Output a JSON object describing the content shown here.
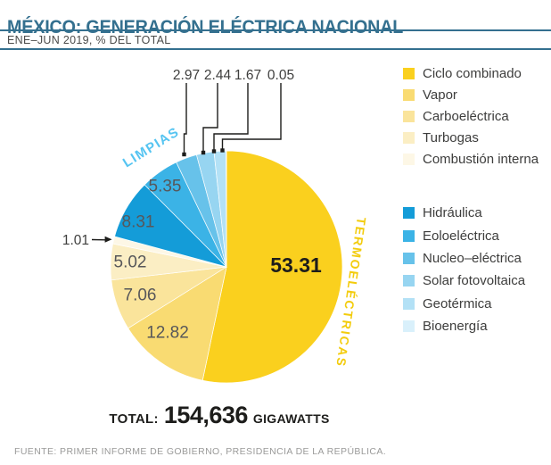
{
  "title": "MÉXICO: GENERACIÓN ELÉCTRICA NACIONAL",
  "subtitle": "ENE–JUN 2019, % DEL TOTAL",
  "group_labels": {
    "limpias": "LIMPIAS",
    "termoelectricas": "TERMOELÉCTRICAS"
  },
  "total": {
    "prefix": "TOTAL:",
    "value": "154,636",
    "unit": "GIGAWATTS"
  },
  "source": "FUENTE: PRIMER INFORME DE GOBIERNO, PRESIDENCIA DE LA REPÚBLICA.",
  "colors": {
    "title": "#34708F",
    "rule": "#34708F",
    "limpias_label": "#55C4F1",
    "termoelectricas_label": "#F3CC0D",
    "leader_line": "#1d1d1b",
    "legend_text": "#3d3d3c",
    "value_text": "#57575a",
    "big_value_text": "#1d1d1b",
    "source_text": "#9a9a99"
  },
  "chart_data": {
    "type": "pie",
    "title": "MÉXICO: GENERACIÓN ELÉCTRICA NACIONAL",
    "subtitle": "ENE–JUN 2019, % DEL TOTAL",
    "unit": "% del total",
    "start_angle_deg": 0,
    "direction": "clockwise",
    "total": "154,636 gigawatts",
    "legend_position": "right",
    "groups": [
      "Termoeléctricas",
      "Limpias"
    ],
    "slices": [
      {
        "label": "Ciclo combinado",
        "value": 53.31,
        "color": "#FAD01E",
        "group": "Termoeléctricas"
      },
      {
        "label": "Vapor",
        "value": 12.82,
        "color": "#F9DB72",
        "group": "Termoeléctricas"
      },
      {
        "label": "Carboeléctrica",
        "value": 7.06,
        "color": "#FAE49B",
        "group": "Termoeléctricas"
      },
      {
        "label": "Turbogas",
        "value": 5.02,
        "color": "#FBEEC4",
        "group": "Termoeléctricas"
      },
      {
        "label": "Combustión interna",
        "value": 1.01,
        "color": "#FDF7E6",
        "group": "Termoeléctricas"
      },
      {
        "label": "Hidráulica",
        "value": 8.31,
        "color": "#149CD8",
        "group": "Limpias"
      },
      {
        "label": "Eoloeléctrica",
        "value": 5.35,
        "color": "#3BB3E6",
        "group": "Limpias"
      },
      {
        "label": "Nucleo–eléctrica",
        "value": 2.97,
        "color": "#67C2EA",
        "group": "Limpias"
      },
      {
        "label": "Solar fotovoltaica",
        "value": 2.44,
        "color": "#97D5F1",
        "group": "Limpias"
      },
      {
        "label": "Geotérmica",
        "value": 1.67,
        "color": "#B3E1F6",
        "group": "Limpias"
      },
      {
        "label": "Bioenergía",
        "value": 0.05,
        "color": "#D9F0FB",
        "group": "Limpias"
      }
    ]
  }
}
